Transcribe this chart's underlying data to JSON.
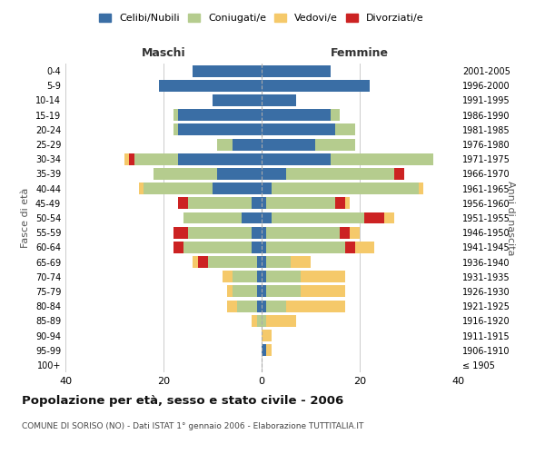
{
  "age_groups": [
    "100+",
    "95-99",
    "90-94",
    "85-89",
    "80-84",
    "75-79",
    "70-74",
    "65-69",
    "60-64",
    "55-59",
    "50-54",
    "45-49",
    "40-44",
    "35-39",
    "30-34",
    "25-29",
    "20-24",
    "15-19",
    "10-14",
    "5-9",
    "0-4"
  ],
  "birth_years": [
    "≤ 1905",
    "1906-1910",
    "1911-1915",
    "1916-1920",
    "1921-1925",
    "1926-1930",
    "1931-1935",
    "1936-1940",
    "1941-1945",
    "1946-1950",
    "1951-1955",
    "1956-1960",
    "1961-1965",
    "1966-1970",
    "1971-1975",
    "1976-1980",
    "1981-1985",
    "1986-1990",
    "1991-1995",
    "1996-2000",
    "2001-2005"
  ],
  "maschi": {
    "celibi": [
      0,
      0,
      0,
      0,
      1,
      1,
      1,
      1,
      2,
      2,
      4,
      2,
      10,
      9,
      17,
      6,
      17,
      17,
      10,
      21,
      14
    ],
    "coniugati": [
      0,
      0,
      0,
      1,
      4,
      5,
      5,
      10,
      14,
      13,
      12,
      13,
      14,
      13,
      9,
      3,
      1,
      1,
      0,
      0,
      0
    ],
    "vedovi": [
      0,
      0,
      0,
      1,
      2,
      1,
      2,
      1,
      0,
      0,
      0,
      0,
      1,
      0,
      1,
      0,
      0,
      0,
      0,
      0,
      0
    ],
    "divorziati": [
      0,
      0,
      0,
      0,
      0,
      0,
      0,
      2,
      2,
      3,
      0,
      2,
      0,
      0,
      1,
      0,
      0,
      0,
      0,
      0,
      0
    ]
  },
  "femmine": {
    "nubili": [
      0,
      1,
      0,
      0,
      1,
      1,
      1,
      1,
      1,
      1,
      2,
      1,
      2,
      5,
      14,
      11,
      15,
      14,
      7,
      22,
      14
    ],
    "coniugate": [
      0,
      0,
      0,
      1,
      4,
      7,
      7,
      5,
      16,
      15,
      19,
      14,
      30,
      22,
      21,
      8,
      4,
      2,
      0,
      0,
      0
    ],
    "vedove": [
      0,
      1,
      2,
      6,
      12,
      9,
      9,
      4,
      4,
      2,
      2,
      1,
      1,
      0,
      0,
      0,
      0,
      0,
      0,
      0,
      0
    ],
    "divorziate": [
      0,
      0,
      0,
      0,
      0,
      0,
      0,
      0,
      2,
      2,
      4,
      2,
      0,
      2,
      0,
      0,
      0,
      0,
      0,
      0,
      0
    ]
  },
  "colors": {
    "celibi_nubili": "#3a6ea5",
    "coniugati": "#b5cc8e",
    "vedovi": "#f5c96a",
    "divorziati": "#cc2222"
  },
  "title": "Popolazione per età, sesso e stato civile - 2006",
  "subtitle": "COMUNE DI SORISO (NO) - Dati ISTAT 1° gennaio 2006 - Elaborazione TUTTITALIA.IT",
  "xlabel_maschi": "Maschi",
  "xlabel_femmine": "Femmine",
  "ylabel_left": "Fasce di età",
  "ylabel_right": "Anni di nascita",
  "xlim": 40,
  "background_color": "#ffffff",
  "grid_color": "#cccccc"
}
